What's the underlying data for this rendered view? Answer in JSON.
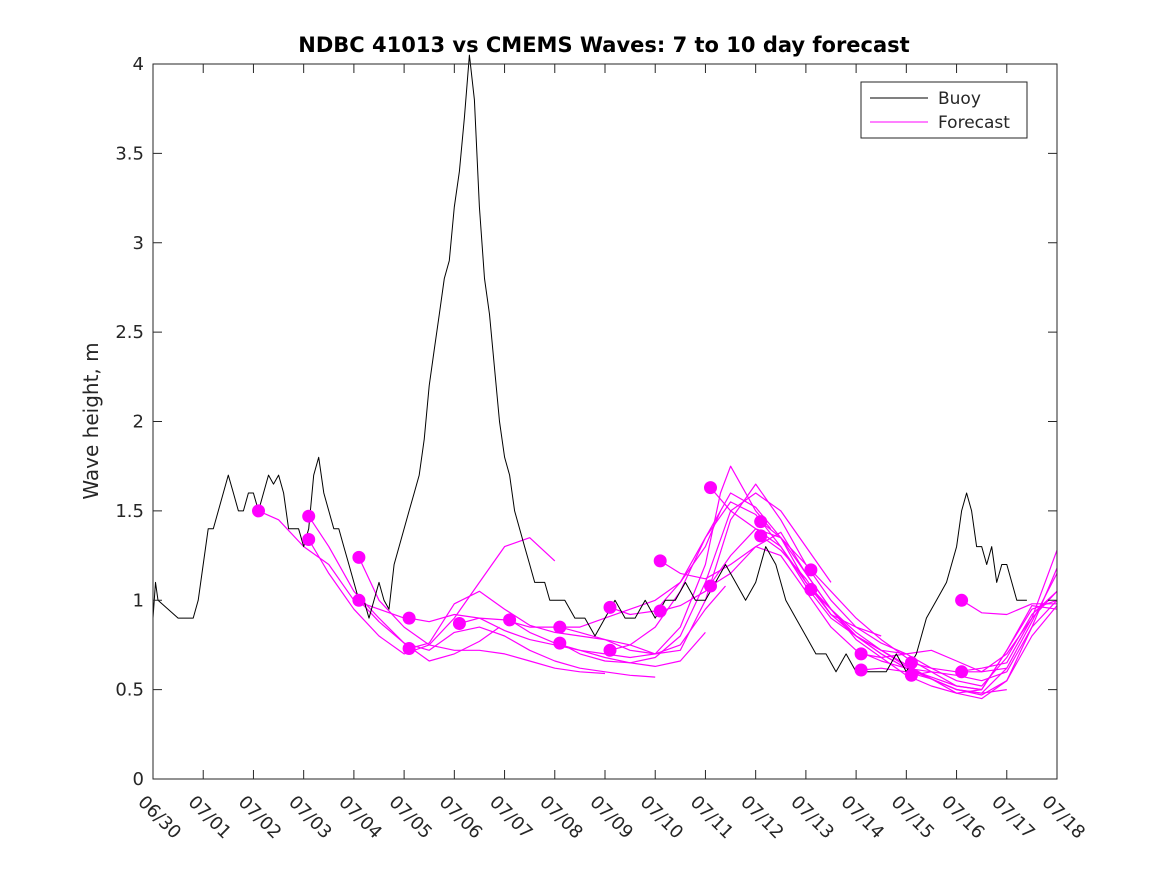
{
  "chart_data": {
    "type": "line",
    "title": "NDBC 41013 vs CMEMS Waves: 7 to 10 day forecast",
    "xlabel": "",
    "ylabel": "Wave height, m",
    "xlim": [
      "06/30",
      "07/18"
    ],
    "ylim": [
      0,
      4
    ],
    "yticks": [
      0,
      0.5,
      1,
      1.5,
      2,
      2.5,
      3,
      3.5,
      4
    ],
    "xtick_labels": [
      "06/30",
      "07/01",
      "07/02",
      "07/03",
      "07/04",
      "07/05",
      "07/06",
      "07/07",
      "07/08",
      "07/09",
      "07/10",
      "07/11",
      "07/12",
      "07/13",
      "07/14",
      "07/15",
      "07/16",
      "07/17",
      "07/18"
    ],
    "x_unit": "day",
    "grid": false,
    "legend": {
      "location": "top-right",
      "entries": [
        {
          "label": "Buoy",
          "color": "#000000"
        },
        {
          "label": "Forecast",
          "color": "#ff00ff"
        }
      ]
    },
    "buoy": {
      "name": "Buoy",
      "color": "#000000",
      "x": [
        0.0,
        0.05,
        0.1,
        0.5,
        0.8,
        0.9,
        1.0,
        1.1,
        1.2,
        1.3,
        1.4,
        1.5,
        1.6,
        1.7,
        1.8,
        1.9,
        2.0,
        2.1,
        2.2,
        2.3,
        2.4,
        2.5,
        2.6,
        2.7,
        2.8,
        2.9,
        3.0,
        3.1,
        3.2,
        3.3,
        3.4,
        3.5,
        3.6,
        3.7,
        3.8,
        3.9,
        4.0,
        4.1,
        4.2,
        4.3,
        4.4,
        4.5,
        4.6,
        4.7,
        4.8,
        4.9,
        5.0,
        5.1,
        5.2,
        5.3,
        5.4,
        5.5,
        5.6,
        5.7,
        5.8,
        5.9,
        6.0,
        6.1,
        6.2,
        6.3,
        6.4,
        6.5,
        6.6,
        6.7,
        6.8,
        6.9,
        7.0,
        7.1,
        7.2,
        7.3,
        7.4,
        7.5,
        7.6,
        7.7,
        7.8,
        7.9,
        8.0,
        8.2,
        8.4,
        8.6,
        8.8,
        9.0,
        9.2,
        9.4,
        9.6,
        9.8,
        10.0,
        10.2,
        10.4,
        10.6,
        10.8,
        11.0,
        11.2,
        11.4,
        11.6,
        11.8,
        12.0,
        12.2,
        12.4,
        12.6,
        12.8,
        13.0,
        13.2,
        13.4,
        13.6,
        13.8,
        14.0,
        14.2,
        14.4,
        14.6,
        14.8,
        15.0,
        15.2,
        15.4,
        15.6,
        15.8,
        16.0,
        16.1,
        16.2,
        16.3,
        16.4,
        16.5,
        16.6,
        16.7,
        16.8,
        16.9,
        17.0,
        17.2,
        17.4
      ],
      "y": [
        0.9,
        1.1,
        1.0,
        0.9,
        0.9,
        1.0,
        1.2,
        1.4,
        1.4,
        1.5,
        1.6,
        1.7,
        1.6,
        1.5,
        1.5,
        1.6,
        1.6,
        1.5,
        1.6,
        1.7,
        1.65,
        1.7,
        1.6,
        1.4,
        1.4,
        1.4,
        1.3,
        1.4,
        1.7,
        1.8,
        1.6,
        1.5,
        1.4,
        1.4,
        1.3,
        1.2,
        1.1,
        1.0,
        1.0,
        0.9,
        1.0,
        1.1,
        1.0,
        0.95,
        1.2,
        1.3,
        1.4,
        1.5,
        1.6,
        1.7,
        1.9,
        2.2,
        2.4,
        2.6,
        2.8,
        2.9,
        3.2,
        3.4,
        3.7,
        4.05,
        3.8,
        3.2,
        2.8,
        2.6,
        2.3,
        2.0,
        1.8,
        1.7,
        1.5,
        1.4,
        1.3,
        1.2,
        1.1,
        1.1,
        1.1,
        1.0,
        1.0,
        1.0,
        0.9,
        0.9,
        0.8,
        0.9,
        1.0,
        0.9,
        0.9,
        1.0,
        0.9,
        1.0,
        1.0,
        1.1,
        1.0,
        1.0,
        1.1,
        1.2,
        1.1,
        1.0,
        1.1,
        1.3,
        1.2,
        1.0,
        0.9,
        0.8,
        0.7,
        0.7,
        0.6,
        0.7,
        0.6,
        0.6,
        0.6,
        0.6,
        0.7,
        0.6,
        0.7,
        0.9,
        1.0,
        1.1,
        1.3,
        1.5,
        1.6,
        1.5,
        1.3,
        1.3,
        1.2,
        1.3,
        1.1,
        1.2,
        1.2,
        1.0,
        1.0
      ]
    },
    "forecast": {
      "name": "Forecast",
      "color": "#ff00ff",
      "runs": [
        {
          "x": [
            2.1,
            2.5,
            3.0,
            3.5,
            4.0,
            4.5,
            5.0,
            5.1
          ],
          "y": [
            1.5,
            1.45,
            1.3,
            1.2,
            1.0,
            0.95,
            0.9,
            0.88
          ]
        },
        {
          "x": [
            3.1,
            3.5,
            4.0,
            4.5,
            5.0,
            5.5,
            6.0,
            6.5,
            6.9
          ],
          "y": [
            1.47,
            1.3,
            1.05,
            0.9,
            0.76,
            0.66,
            0.7,
            0.77,
            0.85
          ]
        },
        {
          "x": [
            3.1,
            3.5,
            4.0,
            4.5,
            5.0,
            5.5,
            6.0,
            6.5,
            7.0,
            7.5,
            8.0
          ],
          "y": [
            1.34,
            1.15,
            0.95,
            0.8,
            0.7,
            0.75,
            0.9,
            1.1,
            1.3,
            1.35,
            1.22
          ]
        },
        {
          "x": [
            4.1,
            4.5,
            5.0,
            5.5,
            6.0,
            6.5,
            7.0,
            7.5,
            8.0,
            8.5,
            9.0
          ],
          "y": [
            1.24,
            1.0,
            0.85,
            0.75,
            0.72,
            0.72,
            0.7,
            0.66,
            0.62,
            0.6,
            0.59
          ]
        },
        {
          "x": [
            4.1,
            4.5,
            5.0,
            5.5,
            6.0,
            6.5,
            7.0,
            7.5,
            8.0,
            8.5,
            9.0,
            9.5,
            10.0
          ],
          "y": [
            1.0,
            0.88,
            0.76,
            0.72,
            0.82,
            0.85,
            0.8,
            0.72,
            0.66,
            0.62,
            0.6,
            0.58,
            0.57
          ]
        },
        {
          "x": [
            5.1,
            5.5,
            6.0,
            6.5,
            7.0,
            7.5,
            8.0,
            8.5,
            9.0,
            9.5,
            10.0,
            10.5,
            11.0
          ],
          "y": [
            0.9,
            0.88,
            0.92,
            0.9,
            0.83,
            0.78,
            0.75,
            0.72,
            0.68,
            0.65,
            0.63,
            0.66,
            0.82
          ]
        },
        {
          "x": [
            5.1,
            5.5,
            6.0,
            6.5,
            7.0,
            7.5,
            8.0,
            8.5,
            9.0,
            9.5,
            10.0,
            10.5,
            11.0,
            11.4
          ],
          "y": [
            0.73,
            0.76,
            0.98,
            1.05,
            0.95,
            0.86,
            0.82,
            0.8,
            0.78,
            0.72,
            0.7,
            0.75,
            0.95,
            1.08
          ]
        },
        {
          "x": [
            6.1,
            6.5,
            7.0,
            7.5,
            8.0,
            8.5,
            9.0,
            9.5,
            10.0,
            10.5,
            11.0,
            11.3
          ],
          "y": [
            0.87,
            0.9,
            0.89,
            0.85,
            0.85,
            0.85,
            0.9,
            0.95,
            1.0,
            1.1,
            1.3,
            1.5
          ]
        },
        {
          "x": [
            7.1,
            7.5,
            8.0,
            8.5,
            9.0,
            9.5,
            10.0,
            10.5,
            11.0,
            11.3,
            11.5,
            12.0,
            12.3
          ],
          "y": [
            0.89,
            0.82,
            0.76,
            0.72,
            0.7,
            0.68,
            0.7,
            0.85,
            1.2,
            1.6,
            1.75,
            1.5,
            1.4
          ]
        },
        {
          "x": [
            8.1,
            8.5,
            9.0,
            9.5,
            10.0,
            10.5,
            11.0,
            11.5,
            12.0,
            12.5,
            13.0
          ],
          "y": [
            0.85,
            0.82,
            0.78,
            0.75,
            0.7,
            0.72,
            1.0,
            1.45,
            1.65,
            1.45,
            1.2
          ]
        },
        {
          "x": [
            8.1,
            8.5,
            9.0,
            9.5,
            10.0,
            10.5,
            11.0,
            11.5,
            12.0,
            12.5,
            13.0,
            13.5
          ],
          "y": [
            0.76,
            0.7,
            0.66,
            0.65,
            0.68,
            0.8,
            1.1,
            1.5,
            1.6,
            1.5,
            1.3,
            1.1
          ]
        },
        {
          "x": [
            9.1,
            9.5,
            10.0,
            10.5,
            11.0,
            11.5,
            12.0,
            12.5,
            13.0,
            13.5,
            14.0,
            14.5
          ],
          "y": [
            0.96,
            0.92,
            0.94,
            1.1,
            1.35,
            1.6,
            1.52,
            1.35,
            1.1,
            0.92,
            0.85,
            0.8
          ]
        },
        {
          "x": [
            9.1,
            9.5,
            10.0,
            10.5,
            11.0,
            11.5,
            12.0,
            12.5,
            13.0,
            13.5,
            14.0,
            14.5,
            15.0
          ],
          "y": [
            0.72,
            0.75,
            0.85,
            1.05,
            1.35,
            1.55,
            1.48,
            1.3,
            1.08,
            0.9,
            0.8,
            0.72,
            0.7
          ]
        },
        {
          "x": [
            10.1,
            10.5,
            11.0,
            11.5,
            12.0,
            12.5,
            13.0,
            13.5,
            14.0,
            14.5,
            15.0,
            15.5
          ],
          "y": [
            1.22,
            1.15,
            1.12,
            1.2,
            1.3,
            1.25,
            1.05,
            0.85,
            0.72,
            0.66,
            0.62,
            0.6
          ]
        },
        {
          "x": [
            10.1,
            10.5,
            11.0,
            11.5,
            12.0,
            12.5,
            13.0,
            13.5,
            14.0,
            14.5,
            15.0,
            15.5,
            16.0,
            16.5
          ],
          "y": [
            0.94,
            0.97,
            1.05,
            1.25,
            1.4,
            1.35,
            1.15,
            0.95,
            0.8,
            0.7,
            0.62,
            0.57,
            0.52,
            0.5
          ]
        },
        {
          "x": [
            11.1,
            11.5,
            12.0,
            12.5,
            13.0,
            13.5,
            14.0,
            14.5,
            15.0,
            15.5,
            16.0,
            16.5,
            17.0
          ],
          "y": [
            1.63,
            1.5,
            1.4,
            1.3,
            1.1,
            0.95,
            0.82,
            0.72,
            0.63,
            0.56,
            0.5,
            0.48,
            0.5
          ]
        },
        {
          "x": [
            11.1,
            11.5,
            12.0,
            12.5,
            13.0,
            13.5,
            14.0,
            14.5,
            15.0,
            15.5,
            16.0,
            16.5,
            17.0,
            17.5,
            18.0
          ],
          "y": [
            1.08,
            1.15,
            1.3,
            1.38,
            1.15,
            0.95,
            0.78,
            0.68,
            0.58,
            0.52,
            0.48,
            0.5,
            0.72,
            0.95,
            1.0
          ]
        },
        {
          "x": [
            12.1,
            12.5,
            13.0,
            13.5,
            14.0,
            14.5,
            15.0,
            15.5,
            16.0,
            16.5,
            17.0,
            17.5,
            18.0
          ],
          "y": [
            1.44,
            1.35,
            1.2,
            1.0,
            0.85,
            0.76,
            0.7,
            0.62,
            0.55,
            0.52,
            0.68,
            0.92,
            1.05
          ]
        },
        {
          "x": [
            12.1,
            12.5,
            13.0,
            13.5,
            14.0,
            14.5,
            15.0,
            15.5,
            16.0,
            16.5,
            17.0,
            17.5,
            18.0
          ],
          "y": [
            1.36,
            1.28,
            1.12,
            0.92,
            0.8,
            0.72,
            0.64,
            0.56,
            0.48,
            0.45,
            0.55,
            0.85,
            1.0
          ]
        },
        {
          "x": [
            13.1,
            13.5,
            14.0,
            14.5,
            15.0,
            15.5,
            16.0,
            16.5,
            17.0,
            17.5,
            18.0
          ],
          "y": [
            1.17,
            1.05,
            0.9,
            0.78,
            0.68,
            0.6,
            0.52,
            0.5,
            0.72,
            0.97,
            0.95
          ]
        },
        {
          "x": [
            13.1,
            13.5,
            14.0,
            14.5,
            15.0,
            15.5,
            16.0,
            16.5,
            17.0,
            17.5,
            18.0
          ],
          "y": [
            1.06,
            0.95,
            0.8,
            0.7,
            0.62,
            0.56,
            0.5,
            0.47,
            0.55,
            0.8,
            0.97
          ]
        },
        {
          "x": [
            14.1,
            14.5,
            15.0,
            15.5,
            16.0,
            16.5,
            17.0,
            17.5,
            18.0
          ],
          "y": [
            0.7,
            0.68,
            0.7,
            0.72,
            0.66,
            0.6,
            0.7,
            0.9,
            1.05
          ]
        },
        {
          "x": [
            14.1,
            14.5,
            15.0,
            15.5,
            16.0,
            16.5,
            17.0,
            17.5,
            18.0
          ],
          "y": [
            0.61,
            0.62,
            0.6,
            0.56,
            0.5,
            0.48,
            0.62,
            0.88,
            1.15
          ]
        },
        {
          "x": [
            15.1,
            15.5,
            16.0,
            16.5,
            17.0,
            17.5,
            18.0
          ],
          "y": [
            0.65,
            0.62,
            0.6,
            0.62,
            0.65,
            0.9,
            1.28
          ]
        },
        {
          "x": [
            15.1,
            15.5,
            16.0,
            16.5,
            17.0,
            17.5,
            18.0
          ],
          "y": [
            0.58,
            0.6,
            0.58,
            0.55,
            0.6,
            0.85,
            1.18
          ]
        },
        {
          "x": [
            16.1,
            16.5,
            17.0,
            17.5,
            18.0
          ],
          "y": [
            1.0,
            0.93,
            0.92,
            0.98,
            0.98
          ]
        },
        {
          "x": [
            16.1,
            16.5,
            17.0
          ],
          "y": [
            0.6,
            0.6,
            0.62
          ]
        }
      ]
    }
  }
}
